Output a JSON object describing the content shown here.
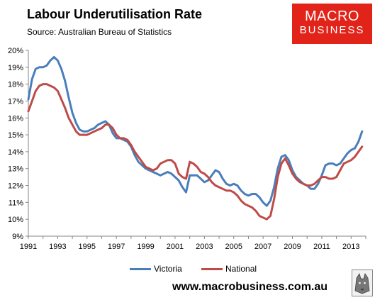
{
  "header": {
    "title": "Labour Underutilisation Rate",
    "source": "Source: Australian Bureau of Statistics"
  },
  "logo": {
    "line1": "MACRO",
    "line2": "BUSINESS"
  },
  "footer": {
    "website": "www.macrobusiness.com.au"
  },
  "colors": {
    "victoria": "#4a7ebb",
    "national": "#be4b48",
    "logo_bg": "#e2231a"
  },
  "icons": {
    "wolf": "wolf-logo-icon"
  },
  "chart_data": {
    "type": "line",
    "title": "Labour Underutilisation Rate",
    "xlabel": "",
    "ylabel": "",
    "xlim": [
      1991,
      2014
    ],
    "ylim": [
      9,
      20
    ],
    "x_ticks": [
      "1991",
      "1993",
      "1995",
      "1997",
      "1999",
      "2001",
      "2003",
      "2005",
      "2007",
      "2009",
      "2011",
      "2013"
    ],
    "y_ticks": [
      "9%",
      "10%",
      "11%",
      "12%",
      "13%",
      "14%",
      "15%",
      "16%",
      "17%",
      "18%",
      "19%",
      "20%"
    ],
    "legend_position": "bottom",
    "grid": false,
    "series": [
      {
        "name": "Victoria",
        "color": "#4a7ebb",
        "x": [
          1991.0,
          1991.25,
          1991.5,
          1991.75,
          1992.0,
          1992.25,
          1992.5,
          1992.75,
          1993.0,
          1993.25,
          1993.5,
          1993.75,
          1994.0,
          1994.25,
          1994.5,
          1994.75,
          1995.0,
          1995.25,
          1995.5,
          1995.75,
          1996.0,
          1996.25,
          1996.5,
          1996.75,
          1997.0,
          1997.25,
          1997.5,
          1997.75,
          1998.0,
          1998.25,
          1998.5,
          1998.75,
          1999.0,
          1999.25,
          1999.5,
          1999.75,
          2000.0,
          2000.25,
          2000.5,
          2000.75,
          2001.0,
          2001.25,
          2001.5,
          2001.75,
          2002.0,
          2002.25,
          2002.5,
          2002.75,
          2003.0,
          2003.25,
          2003.5,
          2003.75,
          2004.0,
          2004.25,
          2004.5,
          2004.75,
          2005.0,
          2005.25,
          2005.5,
          2005.75,
          2006.0,
          2006.25,
          2006.5,
          2006.75,
          2007.0,
          2007.25,
          2007.5,
          2007.75,
          2008.0,
          2008.25,
          2008.5,
          2008.75,
          2009.0,
          2009.25,
          2009.5,
          2009.75,
          2010.0,
          2010.25,
          2010.5,
          2010.75,
          2011.0,
          2011.25,
          2011.5,
          2011.75,
          2012.0,
          2012.25,
          2012.5,
          2012.75,
          2013.0,
          2013.25,
          2013.5,
          2013.75
        ],
        "values": [
          17.1,
          18.3,
          18.9,
          19.0,
          19.0,
          19.1,
          19.4,
          19.6,
          19.4,
          18.9,
          18.2,
          17.2,
          16.3,
          15.7,
          15.3,
          15.2,
          15.2,
          15.3,
          15.4,
          15.6,
          15.7,
          15.8,
          15.6,
          15.1,
          14.8,
          14.8,
          14.7,
          14.6,
          14.3,
          13.8,
          13.4,
          13.2,
          13.0,
          12.9,
          12.8,
          12.7,
          12.6,
          12.7,
          12.8,
          12.7,
          12.5,
          12.3,
          11.9,
          11.6,
          12.6,
          12.6,
          12.6,
          12.4,
          12.2,
          12.3,
          12.6,
          12.9,
          12.8,
          12.4,
          12.1,
          12.0,
          12.1,
          12.0,
          11.7,
          11.5,
          11.4,
          11.5,
          11.5,
          11.3,
          11.0,
          10.8,
          11.1,
          11.9,
          13.0,
          13.7,
          13.8,
          13.5,
          12.9,
          12.5,
          12.3,
          12.1,
          12.0,
          11.8,
          11.8,
          12.1,
          12.6,
          13.2,
          13.3,
          13.3,
          13.2,
          13.3,
          13.6,
          13.9,
          14.1,
          14.2,
          14.6,
          15.2
        ]
      },
      {
        "name": "National",
        "color": "#be4b48",
        "x": [
          1991.0,
          1991.25,
          1991.5,
          1991.75,
          1992.0,
          1992.25,
          1992.5,
          1992.75,
          1993.0,
          1993.25,
          1993.5,
          1993.75,
          1994.0,
          1994.25,
          1994.5,
          1994.75,
          1995.0,
          1995.25,
          1995.5,
          1995.75,
          1996.0,
          1996.25,
          1996.5,
          1996.75,
          1997.0,
          1997.25,
          1997.5,
          1997.75,
          1998.0,
          1998.25,
          1998.5,
          1998.75,
          1999.0,
          1999.25,
          1999.5,
          1999.75,
          2000.0,
          2000.25,
          2000.5,
          2000.75,
          2001.0,
          2001.25,
          2001.5,
          2001.75,
          2002.0,
          2002.25,
          2002.5,
          2002.75,
          2003.0,
          2003.25,
          2003.5,
          2003.75,
          2004.0,
          2004.25,
          2004.5,
          2004.75,
          2005.0,
          2005.25,
          2005.5,
          2005.75,
          2006.0,
          2006.25,
          2006.5,
          2006.75,
          2007.0,
          2007.25,
          2007.5,
          2007.75,
          2008.0,
          2008.25,
          2008.5,
          2008.75,
          2009.0,
          2009.25,
          2009.5,
          2009.75,
          2010.0,
          2010.25,
          2010.5,
          2010.75,
          2011.0,
          2011.25,
          2011.5,
          2011.75,
          2012.0,
          2012.25,
          2012.5,
          2012.75,
          2013.0,
          2013.25,
          2013.5,
          2013.75
        ],
        "values": [
          16.4,
          17.0,
          17.6,
          17.9,
          18.0,
          18.0,
          17.9,
          17.8,
          17.6,
          17.1,
          16.6,
          16.0,
          15.6,
          15.2,
          15.0,
          15.0,
          15.0,
          15.1,
          15.2,
          15.3,
          15.4,
          15.6,
          15.6,
          15.4,
          15.0,
          14.8,
          14.8,
          14.7,
          14.4,
          14.0,
          13.7,
          13.4,
          13.1,
          13.0,
          12.9,
          13.0,
          13.3,
          13.4,
          13.5,
          13.5,
          13.3,
          12.7,
          12.5,
          12.4,
          13.4,
          13.3,
          13.1,
          12.8,
          12.7,
          12.5,
          12.2,
          12.0,
          11.9,
          11.8,
          11.7,
          11.7,
          11.6,
          11.4,
          11.1,
          10.9,
          10.8,
          10.7,
          10.5,
          10.2,
          10.1,
          10.0,
          10.2,
          11.2,
          12.5,
          13.3,
          13.6,
          13.2,
          12.7,
          12.4,
          12.2,
          12.1,
          12.0,
          12.0,
          12.1,
          12.3,
          12.5,
          12.5,
          12.4,
          12.4,
          12.5,
          12.9,
          13.3,
          13.4,
          13.5,
          13.7,
          14.0,
          14.3
        ]
      }
    ]
  }
}
